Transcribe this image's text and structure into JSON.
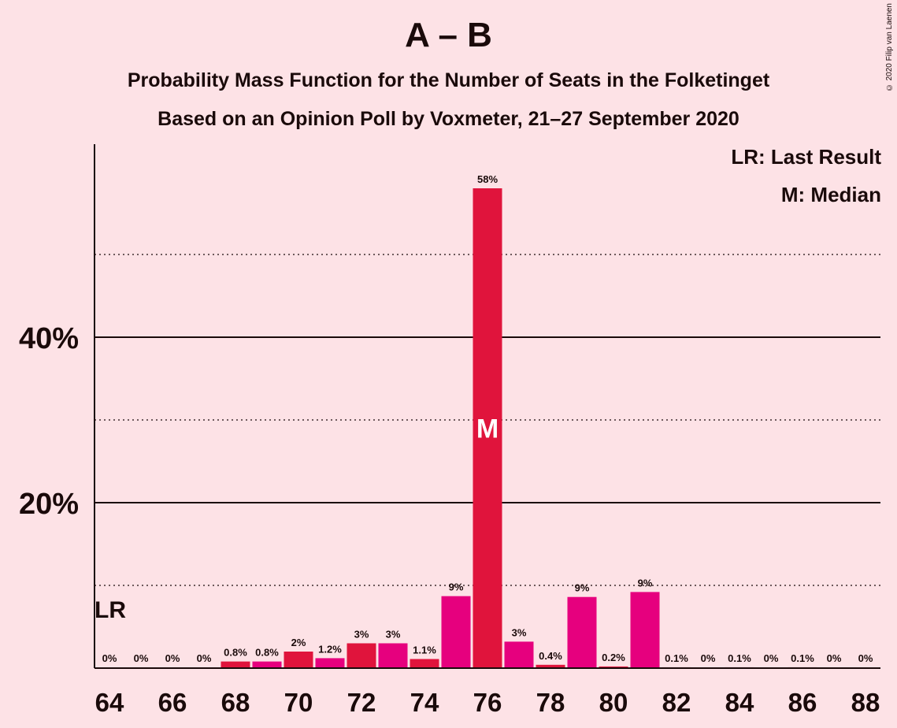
{
  "header": {
    "title": "A – B",
    "subtitle1": "Probability Mass Function for the Number of Seats in the Folketinget",
    "subtitle2": "Based on an Opinion Poll by Voxmeter, 21–27 September 2020",
    "copyright": "© 2020 Filip van Laenen"
  },
  "legend": {
    "lr": "LR: Last Result",
    "m": "M: Median"
  },
  "colors": {
    "bar_primary": "#e0143c",
    "bar_secondary": "#e6007e",
    "background": "#fde2e6",
    "axis": "#1a0a0a"
  },
  "chart_data": {
    "type": "bar",
    "title": "A – B",
    "xlabel": "",
    "ylabel": "",
    "ylim": [
      0,
      63
    ],
    "y_ticks_labeled": [
      20,
      40
    ],
    "y_tick_labels": [
      "20%",
      "40%"
    ],
    "y_grid_dotted": [
      10,
      30,
      50
    ],
    "x_tick_labels": [
      "64",
      "66",
      "68",
      "70",
      "72",
      "74",
      "76",
      "78",
      "80",
      "82",
      "84",
      "86",
      "88"
    ],
    "categories": [
      64,
      65,
      66,
      67,
      68,
      69,
      70,
      71,
      72,
      73,
      74,
      75,
      76,
      77,
      78,
      79,
      80,
      81,
      82,
      83,
      84,
      85,
      86,
      87,
      88
    ],
    "values": [
      0,
      0,
      0,
      0,
      0.8,
      0.8,
      2,
      1.2,
      3,
      3,
      1.1,
      9,
      58,
      3,
      0.4,
      9,
      0.2,
      9,
      0.1,
      0,
      0.1,
      0,
      0.1,
      0,
      0
    ],
    "bar_heights": [
      0,
      0,
      0,
      0,
      0.8,
      0.8,
      2,
      1.2,
      3,
      3,
      1.1,
      8.7,
      58,
      3.2,
      0.4,
      8.6,
      0.2,
      9.2,
      0.1,
      0,
      0.1,
      0,
      0.1,
      0,
      0
    ],
    "data_labels": [
      "0%",
      "0%",
      "0%",
      "0%",
      "0.8%",
      "0.8%",
      "2%",
      "1.2%",
      "3%",
      "3%",
      "1.1%",
      "9%",
      "58%",
      "3%",
      "0.4%",
      "9%",
      "0.2%",
      "9%",
      "0.1%",
      "0%",
      "0.1%",
      "0%",
      "0.1%",
      "0%",
      "0%"
    ],
    "last_result_seat": 64,
    "last_result_label": "LR",
    "median_seat": 76,
    "median_label": "M",
    "grid": true
  }
}
